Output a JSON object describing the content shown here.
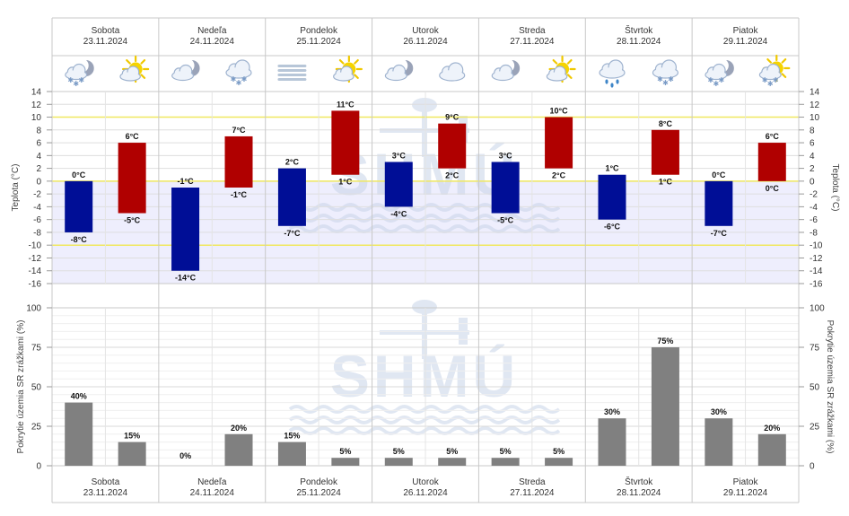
{
  "days": [
    {
      "name": "Sobota",
      "date": "23.11.2024"
    },
    {
      "name": "Nedeľa",
      "date": "24.11.2024"
    },
    {
      "name": "Pondelok",
      "date": "25.11.2024"
    },
    {
      "name": "Utorok",
      "date": "26.11.2024"
    },
    {
      "name": "Streda",
      "date": "27.11.2024"
    },
    {
      "name": "Štvrtok",
      "date": "28.11.2024"
    },
    {
      "name": "Piatok",
      "date": "29.11.2024"
    }
  ],
  "icons": [
    [
      "night-cloud-snow-icon",
      "sun-cloud-icon"
    ],
    [
      "night-cloud-icon",
      "cloud-snow-icon"
    ],
    [
      "fog-icon",
      "sun-cloud-icon"
    ],
    [
      "night-cloud-icon",
      "cloud-icon"
    ],
    [
      "night-cloud-icon",
      "sun-cloud-icon"
    ],
    [
      "cloud-rain-icon",
      "cloud-snow-icon"
    ],
    [
      "night-cloud-snow-icon",
      "sun-cloud-snow-icon"
    ]
  ],
  "watermark": "SHMÚ",
  "colors": {
    "night_bar": "#000e96",
    "day_bar": "#b00000",
    "precip_bar": "#808080",
    "cold_zone": "#eeeefd",
    "threshold_line": "#f0e860",
    "watermark": "#c8d4e8"
  },
  "chart_data": [
    {
      "type": "bar",
      "title": "",
      "ylabel": "Teplota (°C)",
      "ylabel_right": "Teplota (°C)",
      "ylim": [
        -16,
        14
      ],
      "yticks": [
        14,
        12,
        10,
        8,
        6,
        4,
        2,
        0,
        -2,
        -4,
        -6,
        -8,
        -10,
        -12,
        -14,
        -16
      ],
      "unit": "°C",
      "reference_lines": [
        10,
        0,
        -10
      ],
      "categories": [
        "Sobota",
        "Nedeľa",
        "Pondelok",
        "Utorok",
        "Streda",
        "Štvrtok",
        "Piatok"
      ],
      "series": [
        {
          "period": "night",
          "ranges": [
            [
              -8,
              0
            ],
            [
              -14,
              -1
            ],
            [
              -7,
              2
            ],
            [
              -4,
              3
            ],
            [
              -5,
              3
            ],
            [
              -6,
              1
            ],
            [
              -7,
              0
            ]
          ]
        },
        {
          "period": "day",
          "ranges": [
            [
              -5,
              6
            ],
            [
              -1,
              7
            ],
            [
              1,
              11
            ],
            [
              2,
              9
            ],
            [
              2,
              10
            ],
            [
              1,
              8
            ],
            [
              0,
              6
            ]
          ]
        }
      ],
      "labels": {
        "night": [
          [
            "0°C",
            "-8°C"
          ],
          [
            "-1°C",
            "-14°C"
          ],
          [
            "2°C",
            "-7°C"
          ],
          [
            "3°C",
            "-4°C"
          ],
          [
            "3°C",
            "-5°C"
          ],
          [
            "1°C",
            "-6°C"
          ],
          [
            "0°C",
            "-7°C"
          ]
        ],
        "day": [
          [
            "6°C",
            "-5°C"
          ],
          [
            "7°C",
            "-1°C"
          ],
          [
            "11°C",
            "1°C"
          ],
          [
            "9°C",
            "2°C"
          ],
          [
            "10°C",
            "2°C"
          ],
          [
            "8°C",
            "1°C"
          ],
          [
            "6°C",
            "0°C"
          ]
        ]
      }
    },
    {
      "type": "bar",
      "title": "",
      "ylabel": "Pokrytie územia SR zrážkami (%)",
      "ylabel_right": "Pokrytie územia SR zrážkami (%)",
      "ylim": [
        0,
        100
      ],
      "yticks": [
        100,
        75,
        50,
        25,
        0
      ],
      "unit": "%",
      "categories": [
        "Sobota",
        "Nedeľa",
        "Pondelok",
        "Utorok",
        "Streda",
        "Štvrtok",
        "Piatok"
      ],
      "series": [
        {
          "period": "night",
          "values": [
            40,
            0,
            15,
            5,
            5,
            30,
            30
          ]
        },
        {
          "period": "day",
          "values": [
            15,
            20,
            5,
            5,
            5,
            75,
            20
          ]
        }
      ],
      "labels": {
        "night": [
          "40%",
          "0%",
          "15%",
          "5%",
          "5%",
          "30%",
          "30%"
        ],
        "day": [
          "15%",
          "20%",
          "5%",
          "5%",
          "5%",
          "75%",
          "20%"
        ]
      }
    }
  ]
}
